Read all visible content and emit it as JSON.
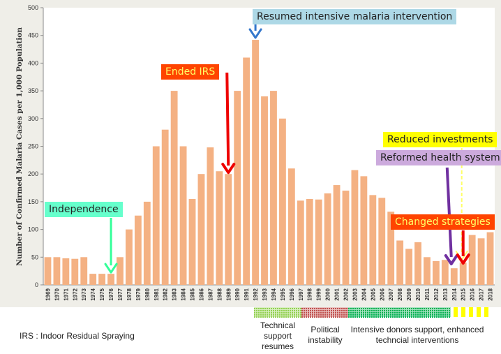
{
  "chart_data": {
    "type": "bar",
    "ylabel": "Number of Confirmed Malaria Cases per 1,000 Population",
    "ylim": [
      0,
      500
    ],
    "yticks": [
      0,
      50,
      100,
      150,
      200,
      250,
      300,
      350,
      400,
      450,
      500
    ],
    "bar_color": "#f4b183",
    "categories": [
      "1969",
      "1970",
      "1971",
      "1972",
      "1973",
      "1974",
      "1975",
      "1976",
      "1977",
      "1978",
      "1979",
      "1980",
      "1981",
      "1982",
      "1983",
      "1984",
      "1985",
      "1986",
      "1987",
      "1988",
      "1989",
      "1990",
      "1991",
      "1992",
      "1993",
      "1994",
      "1995",
      "1996",
      "1997",
      "1998",
      "1999",
      "2000",
      "2001",
      "2002",
      "2003",
      "2004",
      "2005",
      "2006",
      "2007",
      "2008",
      "2009",
      "2010",
      "2011",
      "2012",
      "2013",
      "2014",
      "2015",
      "2016",
      "2017",
      "2018"
    ],
    "values": [
      50,
      50,
      48,
      47,
      50,
      20,
      20,
      20,
      50,
      100,
      125,
      150,
      250,
      280,
      350,
      250,
      155,
      200,
      248,
      205,
      200,
      350,
      410,
      442,
      340,
      350,
      300,
      210,
      152,
      155,
      154,
      165,
      180,
      170,
      207,
      196,
      162,
      157,
      132,
      80,
      65,
      77,
      50,
      43,
      45,
      30,
      40,
      90,
      84,
      95
    ],
    "annotations": [
      {
        "text": "Independence",
        "bg": "#66ffcc",
        "fg": "#222222",
        "arrow_color": "#33ff99",
        "year": "1976"
      },
      {
        "text": "Ended IRS",
        "bg": "#ff4400",
        "fg": "#ffff66",
        "arrow_color": "#ee0000",
        "year": "1989"
      },
      {
        "text": "Resumed intensive malaria intervention",
        "bg": "#add8e6",
        "fg": "#222222",
        "arrow_color": "#3377cc",
        "year": "1992"
      },
      {
        "text": "Reduced investments",
        "bg": "#ffff00",
        "fg": "#222222",
        "arrow_color": "#ffff66",
        "year": "2015"
      },
      {
        "text": "Reformed health system",
        "bg": "#ccaadd",
        "fg": "#222222",
        "arrow_color": "#7030a0",
        "year": "2014"
      },
      {
        "text": "Changed strategies",
        "bg": "#ff4400",
        "fg": "#ffff66",
        "arrow_color": "#ee0000",
        "year": "2015"
      }
    ]
  },
  "phases": [
    {
      "label": "Technical support resumes",
      "color": "#92d050",
      "style": "dotted"
    },
    {
      "label": "Political instability",
      "color": "#c0504d",
      "style": "dotted"
    },
    {
      "label": "Intensive donors support, enhanced techncial interventions",
      "color": "#00b050",
      "style": "dotted"
    },
    {
      "label": "",
      "color": "#ffff00",
      "style": "dashed"
    }
  ],
  "footnote": "IRS : Indoor Residual Spraying"
}
